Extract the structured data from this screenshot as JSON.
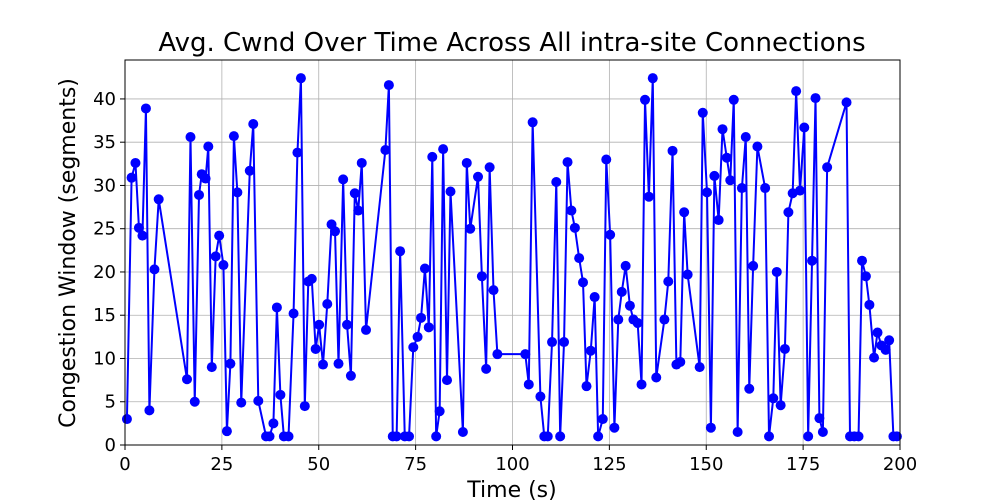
{
  "chart_data": {
    "type": "line",
    "title": "Avg. Cwnd Over Time Across All intra-site Connections",
    "xlabel": "Time (s)",
    "ylabel": "Congestion Window (segments)",
    "xlim": [
      0,
      200
    ],
    "ylim": [
      0,
      44.5
    ],
    "xticks": [
      0,
      25,
      50,
      75,
      100,
      125,
      150,
      175,
      200
    ],
    "yticks": [
      0,
      5,
      10,
      15,
      20,
      25,
      30,
      35,
      40
    ],
    "grid": true,
    "legend": "none",
    "series": [
      {
        "color": "#0000ff",
        "marker": "circle",
        "x": [
          0.5,
          1.7,
          2.7,
          3.6,
          4.5,
          5.4,
          6.3,
          7.6,
          8.7,
          16.0,
          16.9,
          18.0,
          19.1,
          19.8,
          20.8,
          21.5,
          22.4,
          23.4,
          24.3,
          25.4,
          26.3,
          27.2,
          28.1,
          29.0,
          30.0,
          32.2,
          33.1,
          34.4,
          36.4,
          37.3,
          38.3,
          39.2,
          40.1,
          41.0,
          42.2,
          43.5,
          44.5,
          45.4,
          46.4,
          47.3,
          48.2,
          49.2,
          50.1,
          51.1,
          52.2,
          53.3,
          54.2,
          55.1,
          56.3,
          57.3,
          58.3,
          59.3,
          60.2,
          61.1,
          62.2,
          67.2,
          68.1,
          69.1,
          70.1,
          71.0,
          72.2,
          73.3,
          74.4,
          75.5,
          76.4,
          77.4,
          78.4,
          79.3,
          80.3,
          81.2,
          82.1,
          83.1,
          84.0,
          87.2,
          88.2,
          89.1,
          91.1,
          92.1,
          93.2,
          94.1,
          95.1,
          96.1,
          103.3,
          104.2,
          105.2,
          107.2,
          108.2,
          109.1,
          110.2,
          111.3,
          112.3,
          113.3,
          114.2,
          115.2,
          116.1,
          117.2,
          118.2,
          119.1,
          120.2,
          121.2,
          122.1,
          123.3,
          124.2,
          125.2,
          126.3,
          127.3,
          128.2,
          129.2,
          130.3,
          131.2,
          132.3,
          133.3,
          134.2,
          135.2,
          136.2,
          137.1,
          139.2,
          140.2,
          141.3,
          142.3,
          143.3,
          144.3,
          145.2,
          148.3,
          149.1,
          150.2,
          151.2,
          152.1,
          153.2,
          154.2,
          155.3,
          156.2,
          157.1,
          158.1,
          159.2,
          160.2,
          161.1,
          162.1,
          163.2,
          165.2,
          166.2,
          167.3,
          168.2,
          169.2,
          170.3,
          171.2,
          172.3,
          173.2,
          174.2,
          175.3,
          176.3,
          177.3,
          178.2,
          179.2,
          180.1,
          181.2,
          186.2,
          187.1,
          188.2,
          189.3,
          190.2,
          191.2,
          192.1,
          193.3,
          194.2,
          195.2,
          196.3,
          197.2,
          198.3,
          199.2
        ],
        "y": [
          3.0,
          30.9,
          32.6,
          25.1,
          24.2,
          38.9,
          4.0,
          20.3,
          28.4,
          7.6,
          35.6,
          5.0,
          28.9,
          31.3,
          30.8,
          34.5,
          9.0,
          21.8,
          24.2,
          20.8,
          1.6,
          9.4,
          35.7,
          29.2,
          4.9,
          31.7,
          37.1,
          5.1,
          1.0,
          1.0,
          2.5,
          15.9,
          5.8,
          1.0,
          1.0,
          15.2,
          33.8,
          42.4,
          4.5,
          18.9,
          19.2,
          11.1,
          13.9,
          9.3,
          16.3,
          25.5,
          24.7,
          9.4,
          30.7,
          13.9,
          8.0,
          29.1,
          27.1,
          32.6,
          13.3,
          34.1,
          41.6,
          1.0,
          1.0,
          22.4,
          1.0,
          1.0,
          11.3,
          12.5,
          14.7,
          20.4,
          13.6,
          33.3,
          1.0,
          3.9,
          34.2,
          7.5,
          29.3,
          1.5,
          32.6,
          25.0,
          31.0,
          19.5,
          8.8,
          32.1,
          17.9,
          10.5,
          10.5,
          7.0,
          37.3,
          5.6,
          1.0,
          1.0,
          11.9,
          30.4,
          1.0,
          11.9,
          32.7,
          27.1,
          25.1,
          21.6,
          18.8,
          6.8,
          10.9,
          17.1,
          1.0,
          3.0,
          33.0,
          24.3,
          2.0,
          14.5,
          17.7,
          20.7,
          16.1,
          14.5,
          14.1,
          7.0,
          39.9,
          28.7,
          42.4,
          7.8,
          14.5,
          18.9,
          34.0,
          9.3,
          9.6,
          26.9,
          19.7,
          9.0,
          38.4,
          29.2,
          2.0,
          31.1,
          26.0,
          36.5,
          33.2,
          30.6,
          39.9,
          1.5,
          29.7,
          35.6,
          6.5,
          20.7,
          34.5,
          29.7,
          1.0,
          5.4,
          20.0,
          4.6,
          11.1,
          26.9,
          29.1,
          40.9,
          29.4,
          36.7,
          1.0,
          21.3,
          40.1,
          3.1,
          1.5,
          32.1,
          39.6,
          1.0,
          1.0,
          1.0,
          21.3,
          19.5,
          16.2,
          10.1,
          13.0,
          11.5,
          11.0,
          12.1,
          1.0,
          1.0
        ]
      }
    ]
  }
}
